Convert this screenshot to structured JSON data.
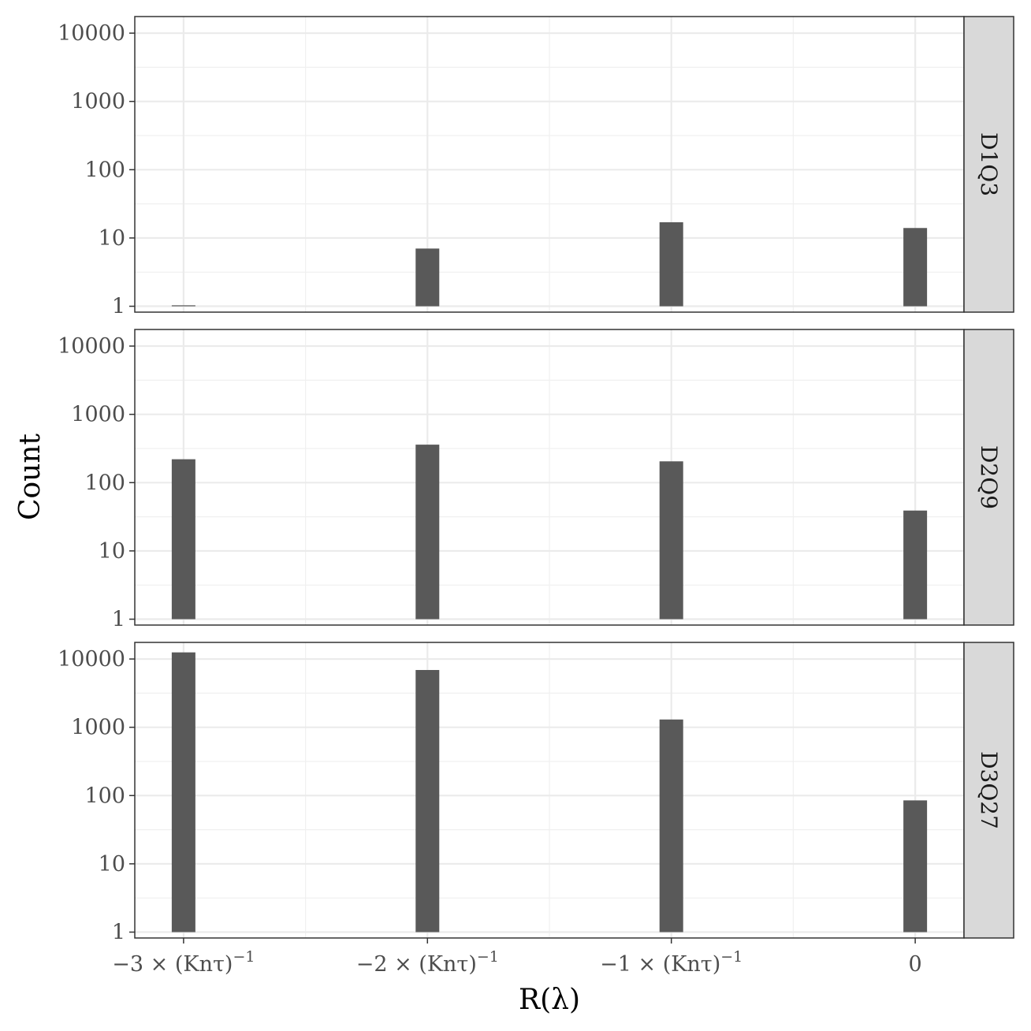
{
  "chart_data": {
    "type": "bar",
    "layout": "facet-rows",
    "xlabel": "R(λ)",
    "ylabel": "Count",
    "y_scale": "log10",
    "ylim": [
      0.82,
      17500
    ],
    "y_ticks": [
      1,
      10,
      100,
      1000,
      10000
    ],
    "y_tick_labels": [
      "1",
      "10",
      "100",
      "1000",
      "10000"
    ],
    "x_positions": [
      -3,
      -2,
      -1,
      0
    ],
    "x_tick_labels": [
      "−3 × (Knτ)",
      "−2 × (Knτ)",
      "−1 × (Knτ)",
      "0"
    ],
    "x_tick_exponent": "−1",
    "xlim": [
      -3.2,
      0.2
    ],
    "grid": true,
    "bar_color": "#595959",
    "strip_color": "#d9d9d9",
    "panels": [
      {
        "name": "D1Q3",
        "values": [
          1,
          7,
          17,
          14
        ]
      },
      {
        "name": "D2Q9",
        "values": [
          220,
          360,
          205,
          39
        ]
      },
      {
        "name": "D3Q27",
        "values": [
          12500,
          6900,
          1300,
          85
        ]
      }
    ]
  }
}
